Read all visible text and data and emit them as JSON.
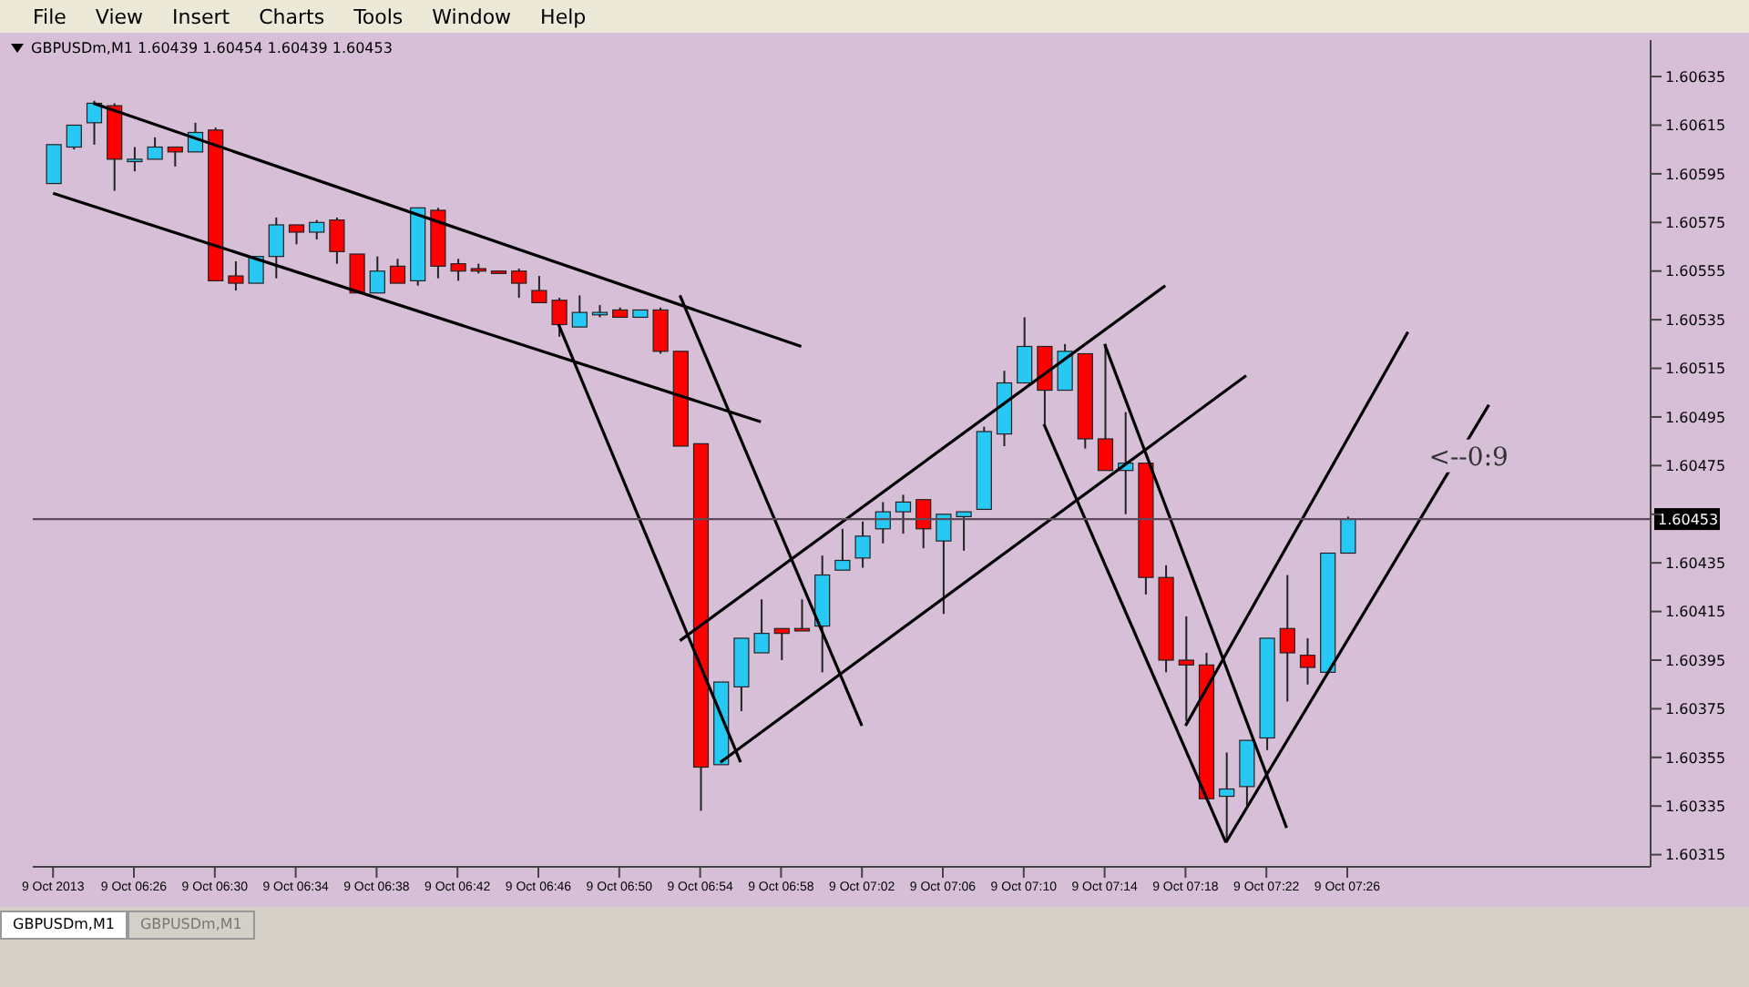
{
  "chart_data": {
    "type": "candlestick",
    "title": "GBPUSDm,M1 1.60439 1.60454 1.60439 1.60453",
    "x": [
      "2013-10-09T06:22",
      "2013-10-09T06:23",
      "2013-10-09T06:24",
      "2013-10-09T06:25",
      "2013-10-09T06:26",
      "2013-10-09T06:27",
      "2013-10-09T06:28",
      "2013-10-09T06:29",
      "2013-10-09T06:30",
      "2013-10-09T06:31",
      "2013-10-09T06:32",
      "2013-10-09T06:33",
      "2013-10-09T06:34",
      "2013-10-09T06:35",
      "2013-10-09T06:36",
      "2013-10-09T06:37",
      "2013-10-09T06:38",
      "2013-10-09T06:39",
      "2013-10-09T06:40",
      "2013-10-09T06:41",
      "2013-10-09T06:42",
      "2013-10-09T06:43",
      "2013-10-09T06:44",
      "2013-10-09T06:45",
      "2013-10-09T06:46",
      "2013-10-09T06:47",
      "2013-10-09T06:48",
      "2013-10-09T06:49",
      "2013-10-09T06:50",
      "2013-10-09T06:51",
      "2013-10-09T06:52",
      "2013-10-09T06:53",
      "2013-10-09T06:54",
      "2013-10-09T06:55",
      "2013-10-09T06:56",
      "2013-10-09T06:57",
      "2013-10-09T06:58",
      "2013-10-09T06:59",
      "2013-10-09T07:00",
      "2013-10-09T07:01",
      "2013-10-09T07:02",
      "2013-10-09T07:03",
      "2013-10-09T07:04",
      "2013-10-09T07:05",
      "2013-10-09T07:06",
      "2013-10-09T07:07",
      "2013-10-09T07:08",
      "2013-10-09T07:09",
      "2013-10-09T07:10",
      "2013-10-09T07:11",
      "2013-10-09T07:12",
      "2013-10-09T07:13",
      "2013-10-09T07:14",
      "2013-10-09T07:15",
      "2013-10-09T07:16",
      "2013-10-09T07:17",
      "2013-10-09T07:18",
      "2013-10-09T07:19",
      "2013-10-09T07:20",
      "2013-10-09T07:21",
      "2013-10-09T07:22",
      "2013-10-09T07:23",
      "2013-10-09T07:24",
      "2013-10-09T07:25",
      "2013-10-09T07:26"
    ],
    "ohlc": [
      [
        1.60591,
        1.60607,
        1.60591,
        1.60607
      ],
      [
        1.60606,
        1.60615,
        1.60605,
        1.60615
      ],
      [
        1.60616,
        1.60625,
        1.60607,
        1.60624
      ],
      [
        1.60623,
        1.60624,
        1.60588,
        1.60601
      ],
      [
        1.606,
        1.60606,
        1.60596,
        1.60601
      ],
      [
        1.60601,
        1.6061,
        1.60601,
        1.60606
      ],
      [
        1.60606,
        1.60606,
        1.60598,
        1.60604
      ],
      [
        1.60604,
        1.60616,
        1.60604,
        1.60612
      ],
      [
        1.60613,
        1.60614,
        1.60551,
        1.60551
      ],
      [
        1.60553,
        1.60559,
        1.60547,
        1.6055
      ],
      [
        1.6055,
        1.60561,
        1.6055,
        1.60561
      ],
      [
        1.60561,
        1.60577,
        1.60552,
        1.60574
      ],
      [
        1.60574,
        1.60574,
        1.60566,
        1.60571
      ],
      [
        1.60571,
        1.60576,
        1.60568,
        1.60575
      ],
      [
        1.60576,
        1.60577,
        1.60558,
        1.60563
      ],
      [
        1.60562,
        1.60562,
        1.60546,
        1.60546
      ],
      [
        1.60546,
        1.60561,
        1.60546,
        1.60555
      ],
      [
        1.60557,
        1.6056,
        1.6055,
        1.6055
      ],
      [
        1.60551,
        1.60581,
        1.60549,
        1.60581
      ],
      [
        1.6058,
        1.60581,
        1.60552,
        1.60557
      ],
      [
        1.60558,
        1.6056,
        1.60551,
        1.60555
      ],
      [
        1.60556,
        1.60558,
        1.60554,
        1.60555
      ],
      [
        1.60555,
        1.60555,
        1.60554,
        1.60554
      ],
      [
        1.60555,
        1.60556,
        1.60544,
        1.6055
      ],
      [
        1.60547,
        1.60553,
        1.60542,
        1.60542
      ],
      [
        1.60543,
        1.60544,
        1.60528,
        1.60533
      ],
      [
        1.60532,
        1.60545,
        1.60532,
        1.60538
      ],
      [
        1.60537,
        1.60541,
        1.60536,
        1.60538
      ],
      [
        1.60539,
        1.6054,
        1.60536,
        1.60536
      ],
      [
        1.60536,
        1.60539,
        1.60536,
        1.60539
      ],
      [
        1.60539,
        1.6054,
        1.60521,
        1.60522
      ],
      [
        1.60522,
        1.60522,
        1.60483,
        1.60483
      ],
      [
        1.60484,
        1.60484,
        1.60333,
        1.60351
      ],
      [
        1.60352,
        1.60386,
        1.60352,
        1.60386
      ],
      [
        1.60384,
        1.60404,
        1.60374,
        1.60404
      ],
      [
        1.60398,
        1.6042,
        1.60398,
        1.60406
      ],
      [
        1.60408,
        1.60408,
        1.60395,
        1.60406
      ],
      [
        1.60408,
        1.6042,
        1.60407,
        1.60407
      ],
      [
        1.60409,
        1.60438,
        1.6039,
        1.6043
      ],
      [
        1.60432,
        1.60449,
        1.60432,
        1.60436
      ],
      [
        1.60437,
        1.60452,
        1.60433,
        1.60446
      ],
      [
        1.60449,
        1.6046,
        1.60443,
        1.60456
      ],
      [
        1.60456,
        1.60463,
        1.60447,
        1.6046
      ],
      [
        1.60461,
        1.60461,
        1.60441,
        1.60449
      ],
      [
        1.60444,
        1.60455,
        1.60414,
        1.60455
      ],
      [
        1.60454,
        1.60456,
        1.6044,
        1.60456
      ],
      [
        1.60457,
        1.60491,
        1.60457,
        1.60489
      ],
      [
        1.60488,
        1.60514,
        1.60483,
        1.60509
      ],
      [
        1.60509,
        1.60536,
        1.60509,
        1.60524
      ],
      [
        1.60524,
        1.60524,
        1.60491,
        1.60506
      ],
      [
        1.60506,
        1.60525,
        1.60506,
        1.60522
      ],
      [
        1.60521,
        1.60521,
        1.60482,
        1.60486
      ],
      [
        1.60486,
        1.60525,
        1.60473,
        1.60473
      ],
      [
        1.60473,
        1.60497,
        1.60455,
        1.60476
      ],
      [
        1.60476,
        1.60476,
        1.60422,
        1.60429
      ],
      [
        1.60429,
        1.60434,
        1.6039,
        1.60395
      ],
      [
        1.60395,
        1.60413,
        1.6037,
        1.60393
      ],
      [
        1.60393,
        1.60398,
        1.60338,
        1.60338
      ],
      [
        1.60339,
        1.60357,
        1.60321,
        1.60342
      ],
      [
        1.60343,
        1.60362,
        1.60335,
        1.60362
      ],
      [
        1.60363,
        1.60404,
        1.60358,
        1.60404
      ],
      [
        1.60408,
        1.6043,
        1.60378,
        1.60398
      ],
      [
        1.60397,
        1.60404,
        1.60385,
        1.60392
      ],
      [
        1.6039,
        1.60439,
        1.6039,
        1.60439
      ],
      [
        1.60439,
        1.60454,
        1.60439,
        1.60453
      ]
    ],
    "colors": [
      "#28c8f5",
      "#28c8f5",
      "#28c8f5",
      "#ff0000",
      "#28c8f5",
      "#28c8f5",
      "#ff0000",
      "#28c8f5",
      "#ff0000",
      "#ff0000",
      "#28c8f5",
      "#28c8f5",
      "#ff0000",
      "#28c8f5",
      "#ff0000",
      "#ff0000",
      "#28c8f5",
      "#ff0000",
      "#28c8f5",
      "#ff0000",
      "#ff0000",
      "#ff0000",
      "#ff0000",
      "#ff0000",
      "#ff0000",
      "#ff0000",
      "#28c8f5",
      "#28c8f5",
      "#ff0000",
      "#28c8f5",
      "#ff0000",
      "#ff0000",
      "#ff0000",
      "#28c8f5",
      "#28c8f5",
      "#28c8f5",
      "#ff0000",
      "#ff0000",
      "#28c8f5",
      "#28c8f5",
      "#28c8f5",
      "#28c8f5",
      "#28c8f5",
      "#ff0000",
      "#28c8f5",
      "#28c8f5",
      "#28c8f5",
      "#28c8f5",
      "#28c8f5",
      "#ff0000",
      "#28c8f5",
      "#ff0000",
      "#ff0000",
      "#28c8f5",
      "#ff0000",
      "#ff0000",
      "#ff0000",
      "#ff0000",
      "#28c8f5",
      "#28c8f5",
      "#28c8f5",
      "#ff0000",
      "#ff0000",
      "#28c8f5",
      "#28c8f5"
    ],
    "series": [
      {
        "type": "line",
        "color": "#000000",
        "x": [
          "2013-10-09T06:24",
          "2013-10-09T06:59"
        ],
        "values": [
          1.60624,
          1.60524
        ]
      },
      {
        "type": "line",
        "color": "#000000",
        "x": [
          "2013-10-09T06:22",
          "2013-10-09T06:57"
        ],
        "values": [
          1.60587,
          1.60493
        ]
      },
      {
        "type": "line",
        "color": "#000000",
        "x": [
          "2013-10-09T06:47",
          "2013-10-09T06:56"
        ],
        "values": [
          1.60533,
          1.60353
        ]
      },
      {
        "type": "line",
        "color": "#000000",
        "x": [
          "2013-10-09T06:53",
          "2013-10-09T07:02"
        ],
        "values": [
          1.60545,
          1.60368
        ]
      },
      {
        "type": "line",
        "color": "#000000",
        "x": [
          "2013-10-09T06:53",
          "2013-10-09T07:17"
        ],
        "values": [
          1.60403,
          1.60549
        ]
      },
      {
        "type": "line",
        "color": "#000000",
        "x": [
          "2013-10-09T06:55",
          "2013-10-09T07:21"
        ],
        "values": [
          1.60353,
          1.60512
        ]
      },
      {
        "type": "line",
        "color": "#000000",
        "x": [
          "2013-10-09T07:11",
          "2013-10-09T07:20"
        ],
        "values": [
          1.60492,
          1.6032
        ]
      },
      {
        "type": "line",
        "color": "#000000",
        "x": [
          "2013-10-09T07:14",
          "2013-10-09T07:23"
        ],
        "values": [
          1.60525,
          1.60326
        ]
      },
      {
        "type": "line",
        "color": "#000000",
        "x": [
          "2013-10-09T07:18",
          "2013-10-09T07:29"
        ],
        "values": [
          1.60368,
          1.6053
        ]
      },
      {
        "type": "line",
        "color": "#000000",
        "x": [
          "2013-10-09T07:20",
          "2013-10-09T07:33"
        ],
        "values": [
          1.6032,
          1.605
        ]
      }
    ],
    "xlim": [
      "2013-10-09T06:21",
      "2013-10-09T07:41"
    ],
    "xticks": [
      {
        "value": "2013-10-09T06:22",
        "label": "9 Oct 2013"
      },
      {
        "value": "2013-10-09T06:26",
        "label": "9 Oct 06:26"
      },
      {
        "value": "2013-10-09T06:30",
        "label": "9 Oct 06:30"
      },
      {
        "value": "2013-10-09T06:34",
        "label": "9 Oct 06:34"
      },
      {
        "value": "2013-10-09T06:38",
        "label": "9 Oct 06:38"
      },
      {
        "value": "2013-10-09T06:42",
        "label": "9 Oct 06:42"
      },
      {
        "value": "2013-10-09T06:46",
        "label": "9 Oct 06:46"
      },
      {
        "value": "2013-10-09T06:50",
        "label": "9 Oct 06:50"
      },
      {
        "value": "2013-10-09T06:54",
        "label": "9 Oct 06:54"
      },
      {
        "value": "2013-10-09T06:58",
        "label": "9 Oct 06:58"
      },
      {
        "value": "2013-10-09T07:02",
        "label": "9 Oct 07:02"
      },
      {
        "value": "2013-10-09T07:06",
        "label": "9 Oct 07:06"
      },
      {
        "value": "2013-10-09T07:10",
        "label": "9 Oct 07:10"
      },
      {
        "value": "2013-10-09T07:14",
        "label": "9 Oct 07:14"
      },
      {
        "value": "2013-10-09T07:18",
        "label": "9 Oct 07:18"
      },
      {
        "value": "2013-10-09T07:22",
        "label": "9 Oct 07:22"
      },
      {
        "value": "2013-10-09T07:26",
        "label": "9 Oct 07:26"
      }
    ],
    "ylim": [
      1.6031,
      1.6065
    ],
    "yticks": [
      1.60315,
      1.60335,
      1.60355,
      1.60375,
      1.60395,
      1.60415,
      1.60435,
      {
        "value": 1.60455,
        "label": null
      },
      1.60475,
      1.60495,
      1.60515,
      1.60535,
      1.60555,
      1.60575,
      1.60595,
      1.60615,
      1.60635
    ],
    "ref_lines": [
      {
        "axis": "y",
        "value": 1.60453,
        "label": "1.60453",
        "color": "#5a4a5a"
      }
    ],
    "annotations": [
      "File",
      "View",
      "Insert",
      "Charts",
      "Tools",
      "Window",
      "Help",
      "GBPUSDm,M1",
      "GBPUSDm,M1",
      {
        "text": "<--0:9",
        "x": "2013-10-09T07:32",
        "y": 1.60479
      }
    ]
  }
}
